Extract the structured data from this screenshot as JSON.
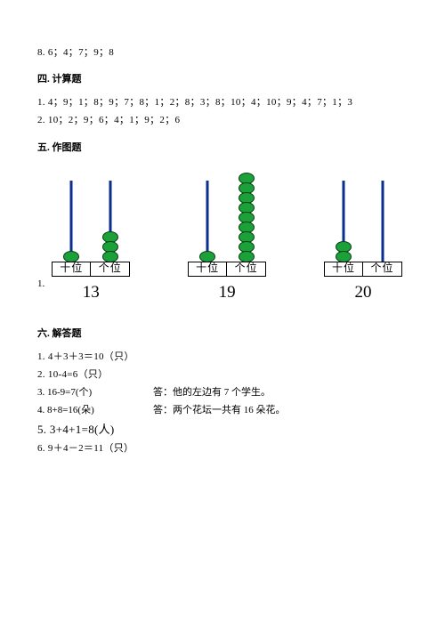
{
  "top_line": "8. 6；4；7；9；8",
  "s4": {
    "title": "四. 计算题",
    "l1": "1. 4；9；1；8；9；7；8；1；2；8；3；8；10；4；10；9；4；7；1；3",
    "l2": "2. 10；2；9；6；4；1；9；2；6"
  },
  "s5": {
    "title": "五. 作图题",
    "prefix": "1.",
    "tens_label": "十位",
    "ones_label": "个位",
    "items": [
      {
        "tens_beads": 1,
        "ones_beads": 3,
        "number": "13"
      },
      {
        "tens_beads": 1,
        "ones_beads": 9,
        "number": "19"
      },
      {
        "tens_beads": 2,
        "ones_beads": 0,
        "number": "20"
      }
    ],
    "bead_fill": "#1ca03a",
    "bead_stroke": "#064012",
    "rod_color": "#0b2f8f"
  },
  "s6": {
    "title": "六. 解答题",
    "a1": "1. 4＋3＋3＝10（只）",
    "a2": "2. 10-4=6（只）",
    "a3_eq": "3. 16-9=7(个)",
    "a3_ans": "答：他的左边有 7 个学生。",
    "a4_eq": "4. 8+8=16(朵)",
    "a4_ans": "答：两个花坛一共有 16 朵花。",
    "a5": "5. 3+4+1=8(人)",
    "a6": "6. 9＋4－2＝11（只）"
  }
}
